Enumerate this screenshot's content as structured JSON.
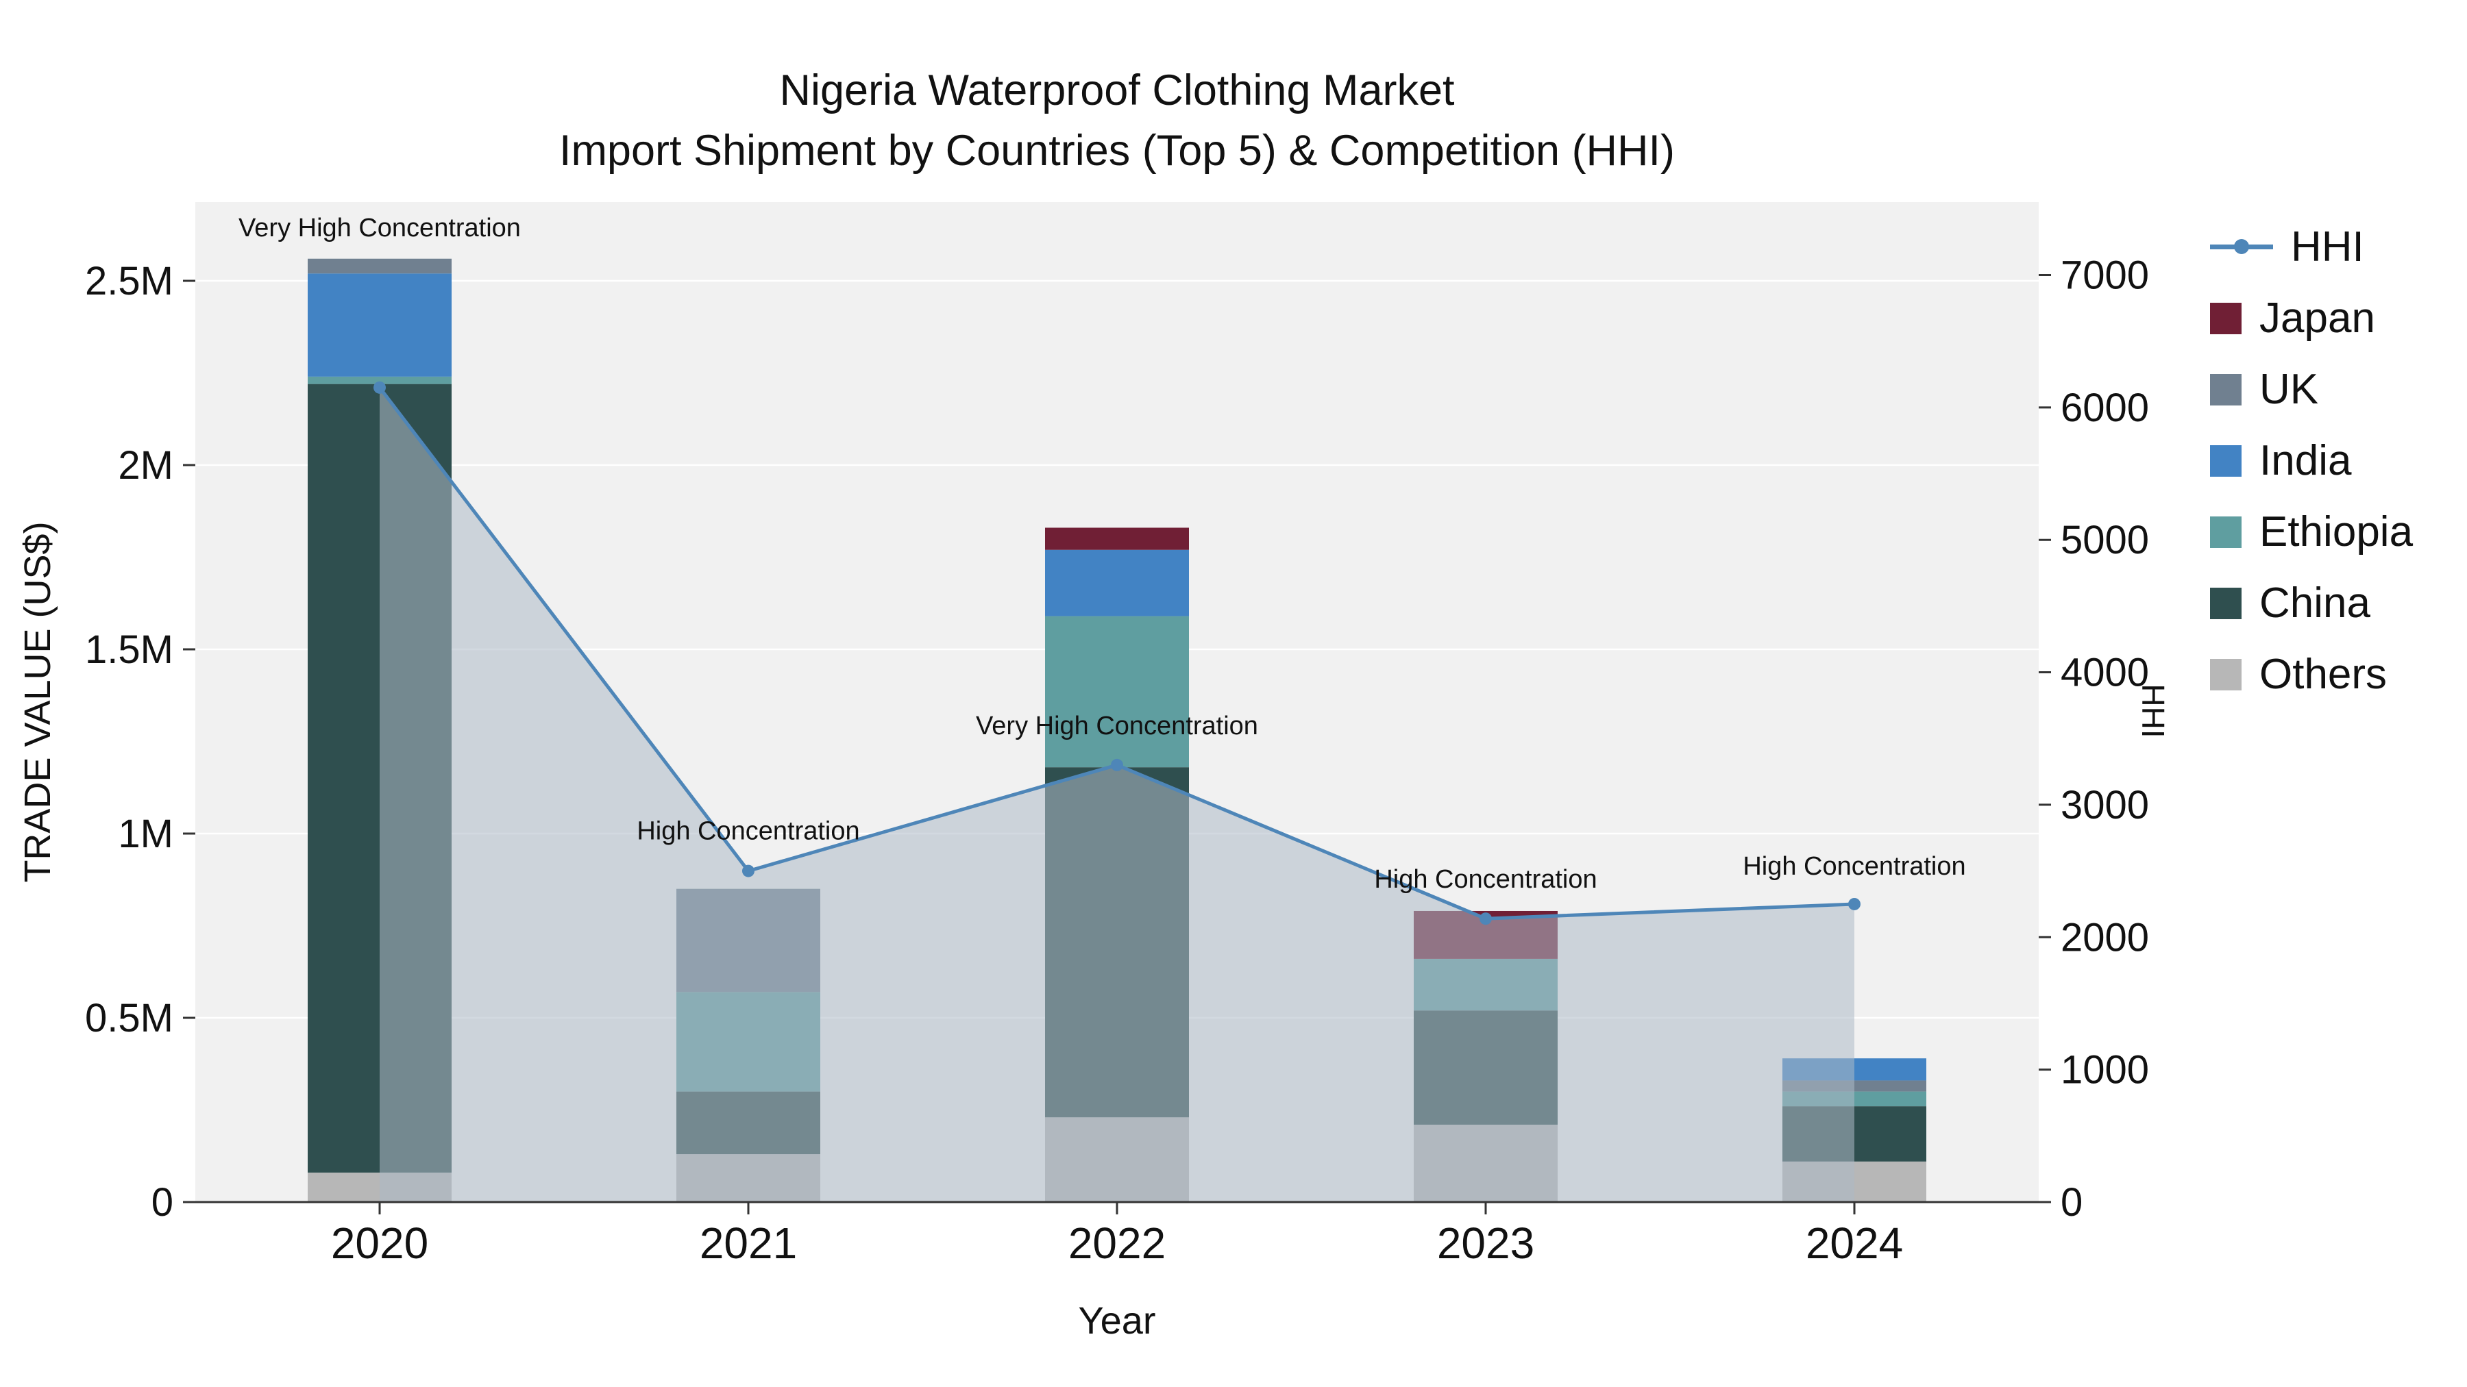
{
  "title": {
    "line1": "Nigeria Waterproof Clothing Market",
    "line2": "Import Shipment by Countries (Top 5) & Competition (HHI)"
  },
  "axes": {
    "x_title": "Year",
    "y_left_title": "TRADE VALUE (US$)",
    "y_right_title": "HHI",
    "x_ticks": [
      "2020",
      "2021",
      "2022",
      "2023",
      "2024"
    ],
    "y_left_ticks": [
      {
        "label": "0",
        "value": 0
      },
      {
        "label": "0.5M",
        "value": 0.5
      },
      {
        "label": "1M",
        "value": 1
      },
      {
        "label": "1.5M",
        "value": 1.5
      },
      {
        "label": "2M",
        "value": 2
      },
      {
        "label": "2.5M",
        "value": 2.5
      }
    ],
    "y_right_ticks": [
      {
        "label": "0",
        "value": 0
      },
      {
        "label": "1000",
        "value": 1000
      },
      {
        "label": "2000",
        "value": 2000
      },
      {
        "label": "3000",
        "value": 3000
      },
      {
        "label": "4000",
        "value": 4000
      },
      {
        "label": "5000",
        "value": 5000
      },
      {
        "label": "6000",
        "value": 6000
      },
      {
        "label": "7000",
        "value": 7000
      }
    ]
  },
  "legend": {
    "items": [
      {
        "label": "HHI",
        "marker": "line"
      },
      {
        "label": "Japan",
        "marker": "square"
      },
      {
        "label": "UK",
        "marker": "square"
      },
      {
        "label": "India",
        "marker": "square"
      },
      {
        "label": "Ethiopia",
        "marker": "square"
      },
      {
        "label": "China",
        "marker": "square"
      },
      {
        "label": "Others",
        "marker": "square"
      }
    ]
  },
  "colors": {
    "HHI": "#4e86b8",
    "Japan": "#701f35",
    "UK": "#708090",
    "India": "#4283c4",
    "Ethiopia": "#5f9ea0",
    "China": "#2f4f4f",
    "Others": "#b7b7b7",
    "area_fill": "rgba(173,186,199,0.55)",
    "plot_bg": "#f1f1f1",
    "grid": "#ffffff",
    "axis": "#333333",
    "text": "#111111"
  },
  "chart_data": {
    "type": "stacked-bar+line",
    "categories": [
      "2020",
      "2021",
      "2022",
      "2023",
      "2024"
    ],
    "bar_unit": "US$ millions (left axis)",
    "stacked_bars": [
      {
        "year": "2020",
        "segments": [
          {
            "name": "Others",
            "value": 0.08
          },
          {
            "name": "China",
            "value": 2.14
          },
          {
            "name": "Ethiopia",
            "value": 0.02
          },
          {
            "name": "India",
            "value": 0.28
          },
          {
            "name": "UK",
            "value": 0.04
          }
        ]
      },
      {
        "year": "2021",
        "segments": [
          {
            "name": "Others",
            "value": 0.13
          },
          {
            "name": "China",
            "value": 0.17
          },
          {
            "name": "Ethiopia",
            "value": 0.27
          },
          {
            "name": "UK",
            "value": 0.28
          }
        ]
      },
      {
        "year": "2022",
        "segments": [
          {
            "name": "Others",
            "value": 0.23
          },
          {
            "name": "China",
            "value": 0.95
          },
          {
            "name": "Ethiopia",
            "value": 0.41
          },
          {
            "name": "India",
            "value": 0.18
          },
          {
            "name": "Japan",
            "value": 0.06
          }
        ]
      },
      {
        "year": "2023",
        "segments": [
          {
            "name": "Others",
            "value": 0.21
          },
          {
            "name": "China",
            "value": 0.31
          },
          {
            "name": "Ethiopia",
            "value": 0.14
          },
          {
            "name": "Japan",
            "value": 0.13
          }
        ]
      },
      {
        "year": "2024",
        "segments": [
          {
            "name": "Others",
            "value": 0.11
          },
          {
            "name": "China",
            "value": 0.15
          },
          {
            "name": "Ethiopia",
            "value": 0.04
          },
          {
            "name": "UK",
            "value": 0.03
          },
          {
            "name": "India",
            "value": 0.06
          }
        ]
      }
    ],
    "hhi": {
      "name": "HHI",
      "values": [
        6150,
        2500,
        3300,
        2140,
        2250
      ],
      "annotations": [
        "Very High Concentration",
        "High Concentration",
        "Very High Concentration",
        "High Concentration",
        "High Concentration"
      ],
      "area_fill": true
    },
    "ylim_left_musd": [
      0,
      2.71
    ],
    "ylim_right_hhi": [
      0,
      7300
    ],
    "legend_position": "right",
    "grid": "horizontal"
  }
}
